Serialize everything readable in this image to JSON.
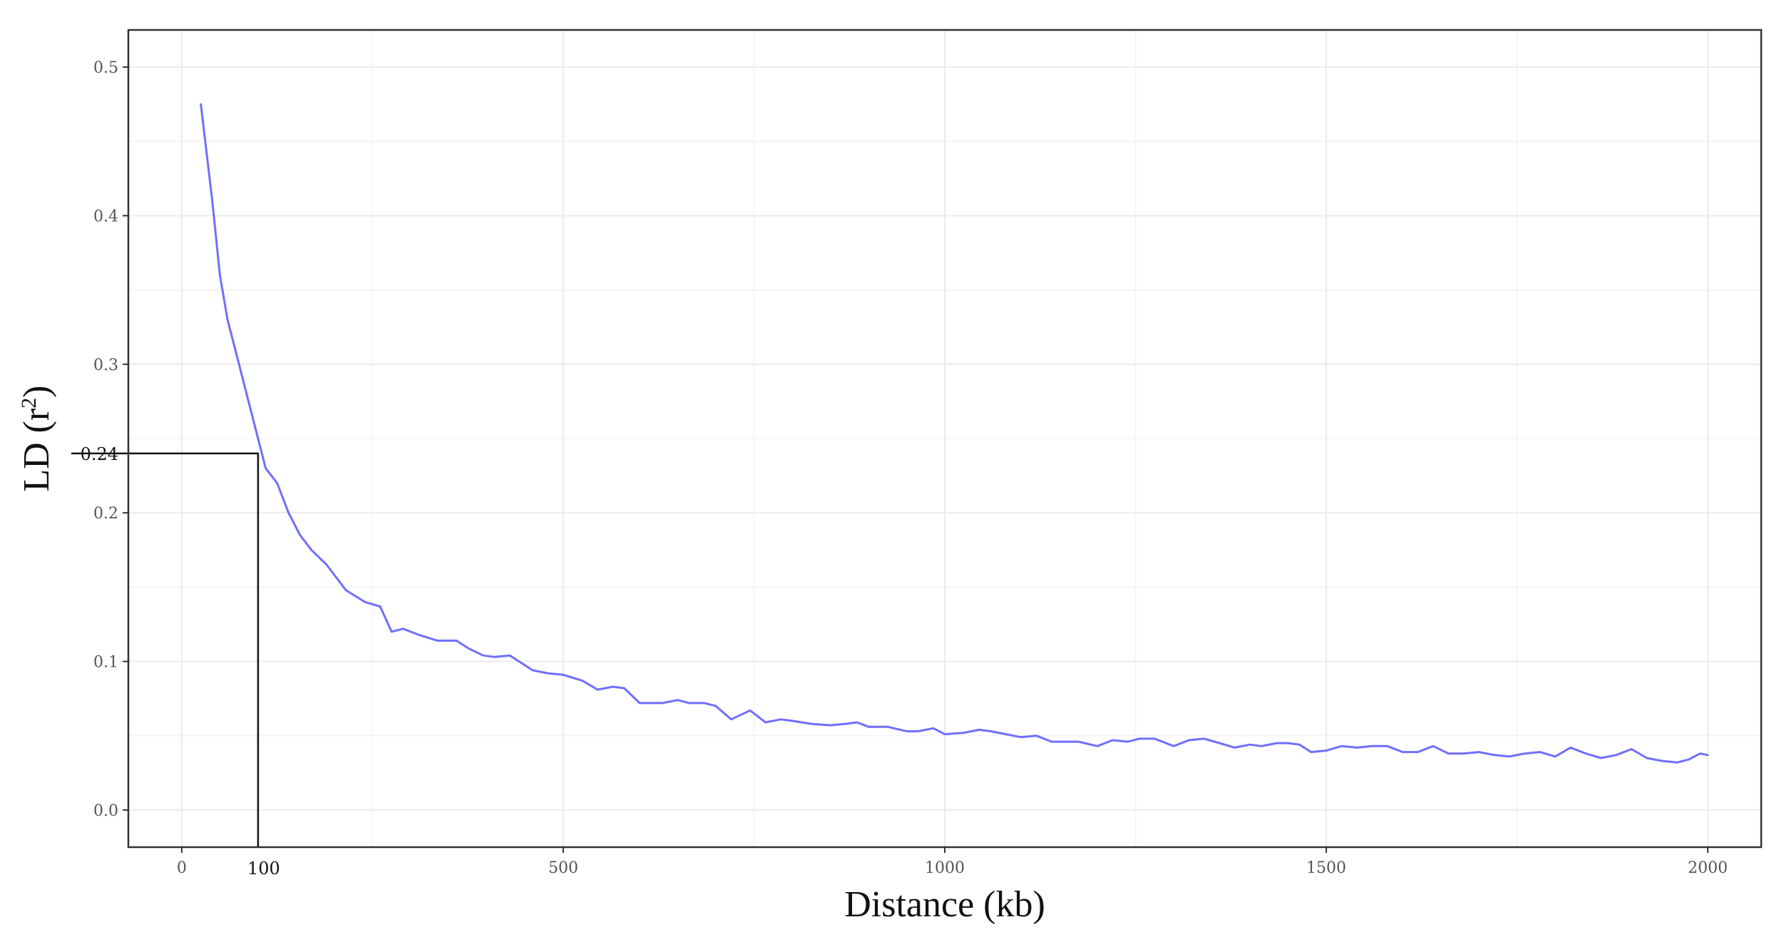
{
  "chart_data": {
    "type": "line",
    "title": "",
    "xlabel": "Distance (kb)",
    "ylabel_main": "LD (r",
    "ylabel_sup": "2",
    "ylabel_close": ")",
    "xlim": [
      -70,
      2070
    ],
    "ylim": [
      -0.025,
      0.525
    ],
    "x_ticks": [
      0,
      500,
      1000,
      1500,
      2000
    ],
    "x_tick_labels": [
      "0",
      "500",
      "1000",
      "1500",
      "2000"
    ],
    "y_ticks": [
      0.0,
      0.1,
      0.2,
      0.3,
      0.4,
      0.5
    ],
    "y_tick_labels": [
      "0.0",
      "0.1",
      "0.2",
      "0.3",
      "0.4",
      "0.5"
    ],
    "grid": true,
    "legend": "none",
    "line_color": "#6f6fff",
    "reference": {
      "x": 100,
      "y": 0.24,
      "x_label": "100",
      "y_label": "0.24"
    },
    "series": [
      {
        "x": [
          25,
          40,
          50,
          60,
          75,
          90,
          100,
          110,
          125,
          140,
          155,
          170,
          190,
          215,
          240,
          260,
          275,
          290,
          310,
          335,
          360,
          375,
          395,
          410,
          430,
          445,
          460,
          480,
          500,
          525,
          545,
          565,
          580,
          600,
          615,
          630,
          650,
          665,
          685,
          700,
          720,
          745,
          765,
          785,
          800,
          825,
          850,
          870,
          885,
          900,
          925,
          950,
          965,
          985,
          1000,
          1025,
          1045,
          1060,
          1080,
          1100,
          1120,
          1140,
          1155,
          1175,
          1200,
          1220,
          1240,
          1255,
          1275,
          1300,
          1320,
          1340,
          1360,
          1380,
          1400,
          1415,
          1435,
          1450,
          1465,
          1480,
          1500,
          1520,
          1540,
          1560,
          1580,
          1600,
          1620,
          1640,
          1660,
          1680,
          1700,
          1720,
          1740,
          1760,
          1780,
          1800,
          1820,
          1840,
          1860,
          1880,
          1900,
          1920,
          1940,
          1960,
          1975,
          1990,
          2000
        ],
        "y": [
          0.475,
          0.41,
          0.36,
          0.33,
          0.3,
          0.27,
          0.25,
          0.23,
          0.22,
          0.2,
          0.185,
          0.175,
          0.165,
          0.148,
          0.14,
          0.137,
          0.12,
          0.122,
          0.118,
          0.114,
          0.114,
          0.109,
          0.104,
          0.103,
          0.104,
          0.099,
          0.094,
          0.092,
          0.091,
          0.087,
          0.081,
          0.083,
          0.082,
          0.072,
          0.072,
          0.072,
          0.074,
          0.072,
          0.072,
          0.07,
          0.061,
          0.067,
          0.059,
          0.061,
          0.06,
          0.058,
          0.057,
          0.058,
          0.059,
          0.056,
          0.056,
          0.053,
          0.053,
          0.055,
          0.051,
          0.052,
          0.054,
          0.053,
          0.051,
          0.049,
          0.05,
          0.046,
          0.046,
          0.046,
          0.043,
          0.047,
          0.046,
          0.048,
          0.048,
          0.043,
          0.047,
          0.048,
          0.045,
          0.042,
          0.044,
          0.043,
          0.045,
          0.045,
          0.044,
          0.039,
          0.04,
          0.043,
          0.042,
          0.043,
          0.043,
          0.039,
          0.039,
          0.043,
          0.038,
          0.038,
          0.039,
          0.037,
          0.036,
          0.038,
          0.039,
          0.036,
          0.042,
          0.038,
          0.035,
          0.037,
          0.041,
          0.035,
          0.033,
          0.032,
          0.034,
          0.038,
          0.037
        ]
      }
    ]
  }
}
